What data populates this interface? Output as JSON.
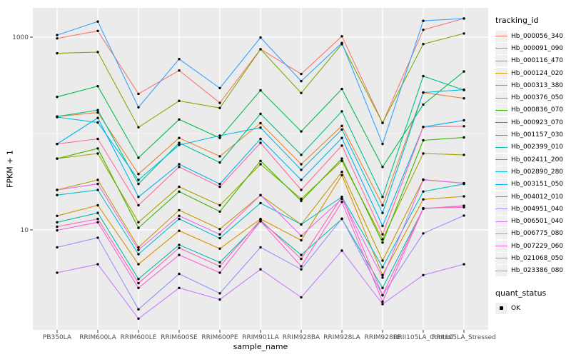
{
  "figure": {
    "background": "#FFFFFF",
    "panel_background": "#EBEBEB",
    "gridline_color": "#FFFFFF",
    "point_color": "#000000",
    "axis_text_color": "#4D4D4D",
    "tick_color": "#333333"
  },
  "chart_data": {
    "type": "line",
    "title": "",
    "xlabel": "sample_name",
    "ylabel": "FPKM + 1",
    "y_scale": "log10",
    "legend_position": "right",
    "grid": true,
    "y_axis_ticks": [
      {
        "label": "1000",
        "value": 1000
      },
      {
        "label": "10",
        "value": 10
      }
    ],
    "y_minor_gridlines": [
      100,
      1
    ],
    "ylim_approx": [
      0.9,
      2000
    ],
    "categories": [
      "PB350LA",
      "RRIM600LA",
      "RRIM600LE",
      "RRIM600SE",
      "RRIM600PE",
      "RRIM901LA",
      "RRIM928BA",
      "RRIM928LA",
      "RRIM928LE",
      "RRII105LA_Control",
      "RRII105LA_Stressed"
    ],
    "legend_title": "tracking_id",
    "quant_status_legend": {
      "title": "quant_status",
      "items": [
        "OK"
      ]
    },
    "series": [
      {
        "name": "Hb_000056_340",
        "color": "#F8766D",
        "values": [
          970,
          1160,
          258,
          451,
          208,
          750,
          415,
          1020,
          129,
          1190,
          1560
        ]
      },
      {
        "name": "Hb_000091_090",
        "color": "#EA8331",
        "values": [
          150,
          165,
          38,
          90,
          58,
          128,
          48,
          120,
          18,
          266,
          232
        ]
      },
      {
        "name": "Hb_000116_470",
        "color": "#D89000",
        "values": [
          14,
          18,
          4.4,
          9.8,
          6.4,
          13,
          7.8,
          37,
          3.4,
          20.7,
          22.3
        ]
      },
      {
        "name": "Hb_000124_020",
        "color": "#C09B00",
        "values": [
          26,
          33,
          6.6,
          16,
          10.2,
          22.9,
          11.4,
          40,
          4.8,
          33.3,
          30.5
        ]
      },
      {
        "name": "Hb_000313_380",
        "color": "#A3A500",
        "values": [
          55,
          62,
          12,
          28,
          18,
          48,
          21,
          52,
          8,
          62,
          60
        ]
      },
      {
        "name": "Hb_000376_050",
        "color": "#7CAE00",
        "values": [
          680,
          700,
          116,
          218,
          184,
          750,
          263,
          845,
          129,
          848,
          1090
        ]
      },
      {
        "name": "Hb_000836_070",
        "color": "#39B600",
        "values": [
          55,
          70,
          10.5,
          25,
          15.5,
          52,
          20,
          55,
          7.4,
          85,
          91
        ]
      },
      {
        "name": "Hb_000923_070",
        "color": "#00BB4E",
        "values": [
          240,
          310,
          56,
          140,
          90,
          280,
          105,
          290,
          45,
          200,
          440
        ]
      },
      {
        "name": "Hb_001157_030",
        "color": "#00C087",
        "values": [
          150,
          175,
          30,
          80,
          50,
          160,
          60,
          170,
          22,
          394,
          282
        ]
      },
      {
        "name": "Hb_002399_010",
        "color": "#00C1A3",
        "values": [
          12,
          15,
          3.1,
          7,
          4.6,
          12.3,
          5.5,
          13,
          2.5,
          16.6,
          17.8
        ]
      },
      {
        "name": "Hb_002411_200",
        "color": "#00BFC4",
        "values": [
          23,
          26,
          5.6,
          13,
          8.2,
          19,
          11.4,
          22,
          4.1,
          25,
          30
        ]
      },
      {
        "name": "Hb_002890_280",
        "color": "#00BAE0",
        "values": [
          148,
          130,
          33,
          76,
          95,
          115,
          42,
          110,
          15,
          266,
          285
        ]
      },
      {
        "name": "Hb_003151_050",
        "color": "#00B0F6",
        "values": [
          78,
          145,
          22,
          48,
          30,
          88,
          33,
          90,
          11,
          117,
          137
        ]
      },
      {
        "name": "Hb_004012_010",
        "color": "#35A2FF",
        "values": [
          1050,
          1450,
          187,
          592,
          296,
          990,
          350,
          870,
          78,
          1475,
          1560
        ]
      },
      {
        "name": "Hb_004951_040",
        "color": "#9590FF",
        "values": [
          6.6,
          8.3,
          1.5,
          3.5,
          2.2,
          6.6,
          3.9,
          13.1,
          2.1,
          9.2,
          14.1
        ]
      },
      {
        "name": "Hb_006501_040",
        "color": "#C77CFF",
        "values": [
          3.6,
          4.4,
          1.2,
          2.5,
          1.9,
          3.9,
          2.0,
          6.1,
          1.7,
          3.4,
          4.4
        ]
      },
      {
        "name": "Hb_006775_080",
        "color": "#E76BF3",
        "values": [
          26,
          30,
          6.2,
          14,
          9,
          23,
          8.7,
          21,
          3.2,
          33,
          30.5
        ]
      },
      {
        "name": "Hb_007229_060",
        "color": "#FA62DB",
        "values": [
          9.9,
          12,
          2.5,
          5.5,
          3.6,
          12.3,
          4.2,
          19.5,
          1.8,
          16.6,
          17.8
        ]
      },
      {
        "name": "Hb_021068_050",
        "color": "#FF62BC",
        "values": [
          10.8,
          13,
          2.8,
          6.5,
          4.2,
          12.7,
          5.0,
          22,
          2.1,
          16.8,
          17.2
        ]
      },
      {
        "name": "Hb_023386_080",
        "color": "#FF6A98",
        "values": [
          78,
          88,
          18,
          45,
          28,
          80,
          26,
          75,
          9,
          117,
          119
        ]
      }
    ]
  }
}
